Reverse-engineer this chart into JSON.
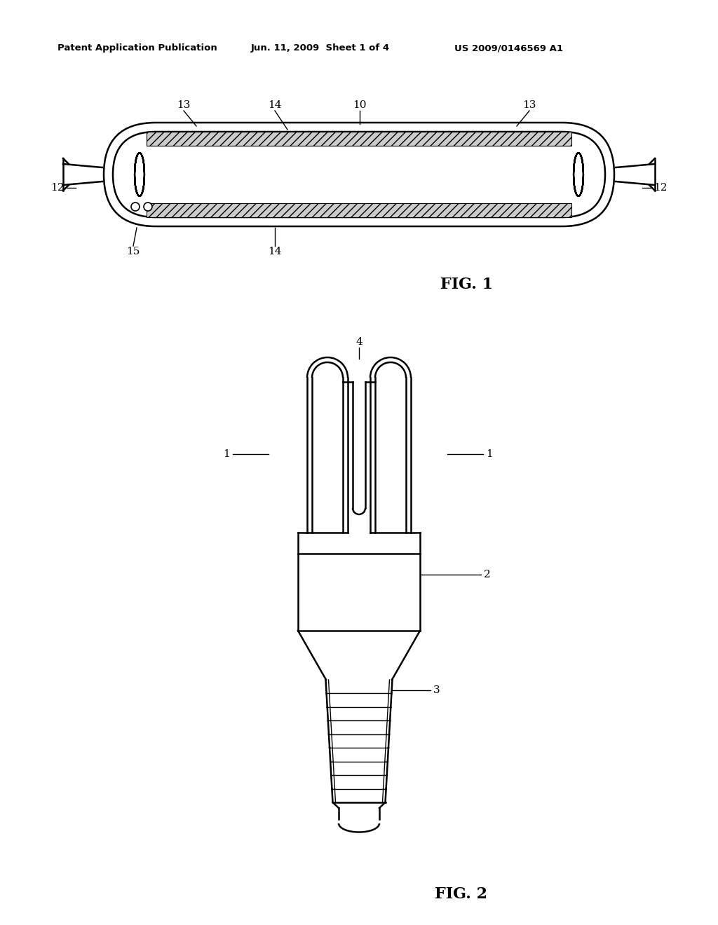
{
  "bg_color": "#ffffff",
  "line_color": "#000000",
  "header_left": "Patent Application Publication",
  "header_mid": "Jun. 11, 2009  Sheet 1 of 4",
  "header_right": "US 2009/0146569 A1",
  "fig1_label": "FIG. 1",
  "fig2_label": "FIG. 2"
}
